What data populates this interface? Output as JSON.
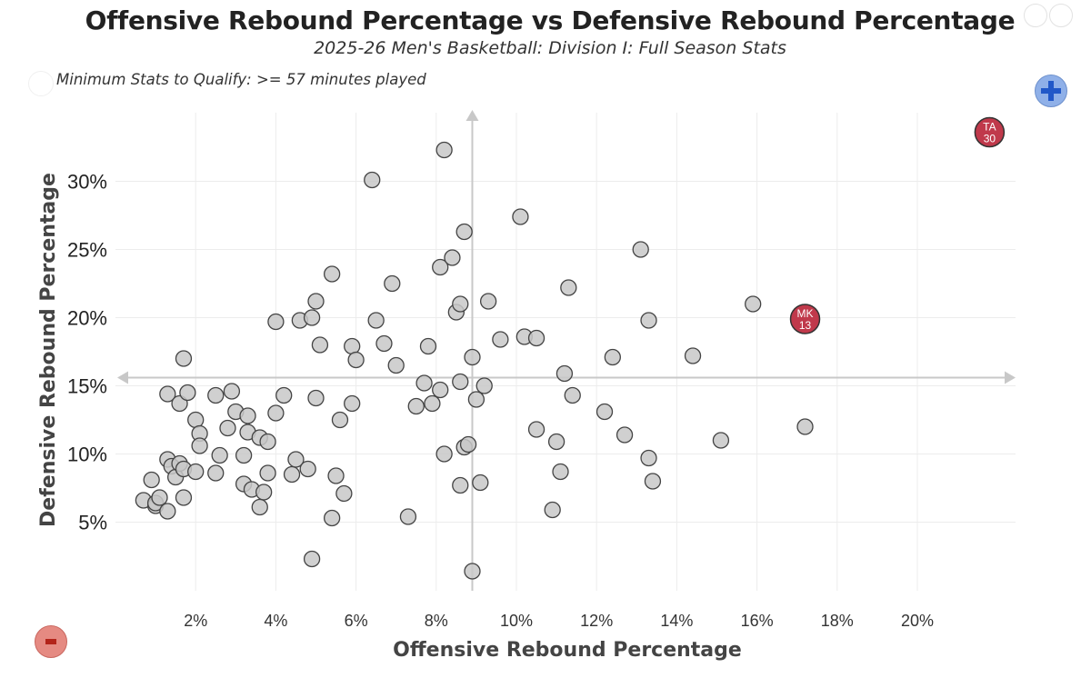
{
  "header": {
    "title": "Offensive Rebound Percentage vs Defensive Rebound Percentage",
    "subtitle": "2025-26 Men's Basketball: Division I: Full Season Stats",
    "qualify_note": "Minimum Stats to Qualify: >= 57 minutes played"
  },
  "controls": {
    "zoom_in_icon": "plus-icon",
    "zoom_out_icon": "minus-icon"
  },
  "colors": {
    "point_fill": "#c8c8c8",
    "point_stroke": "#444444",
    "highlight_fill": "#c0394b",
    "grid": "#ececec",
    "crosshair": "#c8c8c8"
  },
  "chart_data": {
    "type": "scatter",
    "title": "Offensive Rebound Percentage vs Defensive Rebound Percentage",
    "subtitle": "2025-26 Men's Basketball: Division I: Full Season Stats",
    "xlabel": "Offensive Rebound Percentage",
    "ylabel": "Defensive Rebound Percentage",
    "xlim": [
      0,
      22.5
    ],
    "ylim": [
      0,
      36
    ],
    "x_ticks": [
      "2%",
      "4%",
      "6%",
      "8%",
      "10%",
      "12%",
      "14%",
      "16%",
      "18%",
      "20%"
    ],
    "y_ticks": [
      "5%",
      "10%",
      "15%",
      "20%",
      "25%",
      "30%"
    ],
    "grid": true,
    "mean_lines": {
      "x": 8.9,
      "y": 15.6
    },
    "highlighted": [
      {
        "label": "TA",
        "number": "30",
        "x": 21.8,
        "y": 33.6
      },
      {
        "label": "MK",
        "number": "13",
        "x": 17.2,
        "y": 19.9
      }
    ],
    "points": [
      [
        0.7,
        6.6
      ],
      [
        0.9,
        8.1
      ],
      [
        1.0,
        6.2
      ],
      [
        1.0,
        6.4
      ],
      [
        1.1,
        6.8
      ],
      [
        1.3,
        5.8
      ],
      [
        1.3,
        9.6
      ],
      [
        1.3,
        14.4
      ],
      [
        1.4,
        9.1
      ],
      [
        1.5,
        8.3
      ],
      [
        1.6,
        9.3
      ],
      [
        1.6,
        13.7
      ],
      [
        1.7,
        6.8
      ],
      [
        1.7,
        8.9
      ],
      [
        1.8,
        14.5
      ],
      [
        1.7,
        17.0
      ],
      [
        2.0,
        12.5
      ],
      [
        2.0,
        8.7
      ],
      [
        2.1,
        11.5
      ],
      [
        2.1,
        10.6
      ],
      [
        2.5,
        14.3
      ],
      [
        2.5,
        8.6
      ],
      [
        2.6,
        9.9
      ],
      [
        2.8,
        11.9
      ],
      [
        2.9,
        14.6
      ],
      [
        3.0,
        13.1
      ],
      [
        3.2,
        9.9
      ],
      [
        3.2,
        7.8
      ],
      [
        3.3,
        11.6
      ],
      [
        3.3,
        12.8
      ],
      [
        3.4,
        7.4
      ],
      [
        3.6,
        11.2
      ],
      [
        3.6,
        6.1
      ],
      [
        3.7,
        7.2
      ],
      [
        3.8,
        8.6
      ],
      [
        3.8,
        10.9
      ],
      [
        4.0,
        13.0
      ],
      [
        4.0,
        19.7
      ],
      [
        4.2,
        14.3
      ],
      [
        4.4,
        8.5
      ],
      [
        4.5,
        9.6
      ],
      [
        4.6,
        19.8
      ],
      [
        4.8,
        8.9
      ],
      [
        4.9,
        2.3
      ],
      [
        4.9,
        20.0
      ],
      [
        5.0,
        21.2
      ],
      [
        5.0,
        14.1
      ],
      [
        5.1,
        18.0
      ],
      [
        5.4,
        5.3
      ],
      [
        5.4,
        23.2
      ],
      [
        5.5,
        8.4
      ],
      [
        5.6,
        12.5
      ],
      [
        5.7,
        7.1
      ],
      [
        5.9,
        13.7
      ],
      [
        5.9,
        17.9
      ],
      [
        6.0,
        16.9
      ],
      [
        6.4,
        30.1
      ],
      [
        6.5,
        19.8
      ],
      [
        6.7,
        18.1
      ],
      [
        6.9,
        22.5
      ],
      [
        7.0,
        16.5
      ],
      [
        7.3,
        5.4
      ],
      [
        7.5,
        13.5
      ],
      [
        7.7,
        15.2
      ],
      [
        7.8,
        17.9
      ],
      [
        7.9,
        13.7
      ],
      [
        8.1,
        14.7
      ],
      [
        8.1,
        23.7
      ],
      [
        8.2,
        32.3
      ],
      [
        8.2,
        10.0
      ],
      [
        8.4,
        24.4
      ],
      [
        8.5,
        20.4
      ],
      [
        8.6,
        21.0
      ],
      [
        8.6,
        15.3
      ],
      [
        8.6,
        7.7
      ],
      [
        8.7,
        10.5
      ],
      [
        8.7,
        26.3
      ],
      [
        8.8,
        10.7
      ],
      [
        8.9,
        17.1
      ],
      [
        8.9,
        1.4
      ],
      [
        9.0,
        14.0
      ],
      [
        9.1,
        7.9
      ],
      [
        9.2,
        15.0
      ],
      [
        9.3,
        21.2
      ],
      [
        9.6,
        18.4
      ],
      [
        10.1,
        27.4
      ],
      [
        10.2,
        18.6
      ],
      [
        10.5,
        18.5
      ],
      [
        10.5,
        11.8
      ],
      [
        11.0,
        10.9
      ],
      [
        10.9,
        5.9
      ],
      [
        11.1,
        8.7
      ],
      [
        11.2,
        15.9
      ],
      [
        11.3,
        22.2
      ],
      [
        11.4,
        14.3
      ],
      [
        12.2,
        13.1
      ],
      [
        12.4,
        17.1
      ],
      [
        12.7,
        11.4
      ],
      [
        13.1,
        25.0
      ],
      [
        13.3,
        19.8
      ],
      [
        13.3,
        9.7
      ],
      [
        13.4,
        8.0
      ],
      [
        14.4,
        17.2
      ],
      [
        15.1,
        11.0
      ],
      [
        15.9,
        21.0
      ],
      [
        17.2,
        12.0
      ]
    ]
  }
}
